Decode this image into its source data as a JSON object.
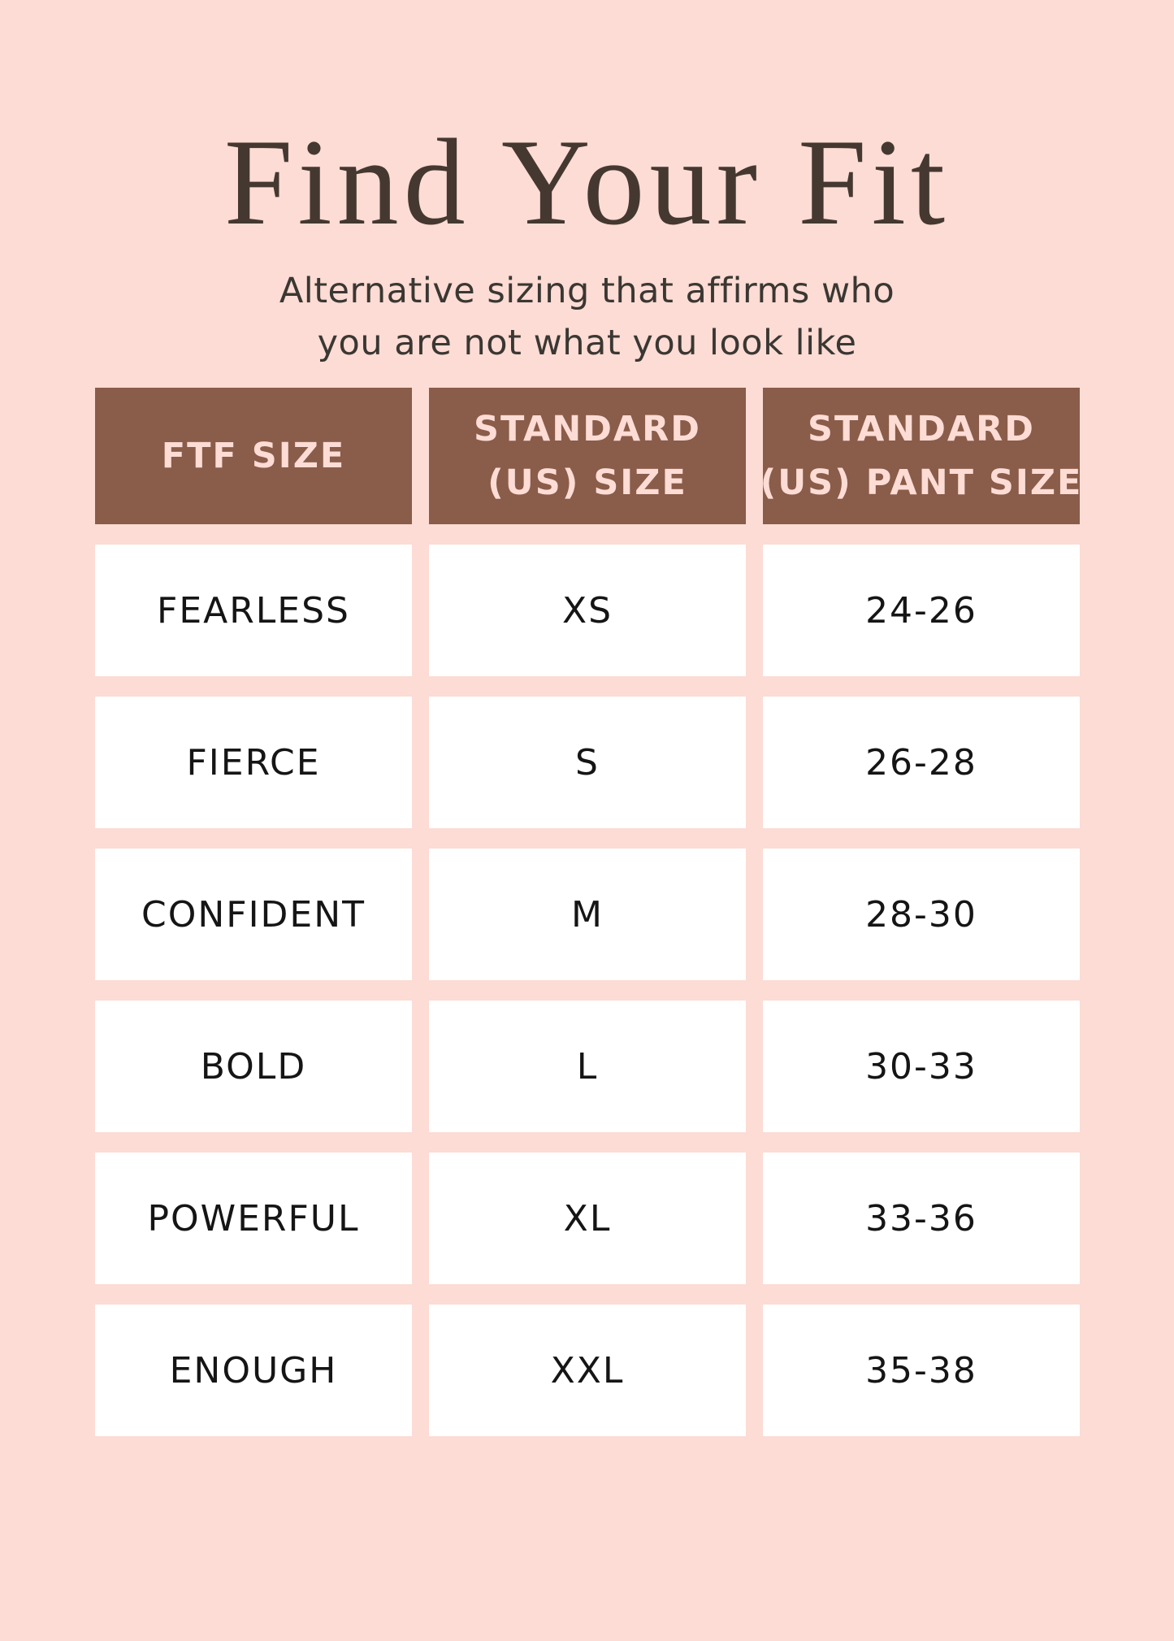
{
  "header": {
    "title": "Find Your Fit",
    "subtitle_lines": [
      "Alternative sizing that affirms who",
      "you are not what you look like"
    ]
  },
  "colors": {
    "bg": "#fcdcd4",
    "header_bg": "#8a5c4a",
    "header_text": "#fcdcd4",
    "title_text": "#453830",
    "subtitle_text": "#3b3733",
    "cell_bg": "#ffffff",
    "cell_text": "#151515"
  },
  "table": {
    "columns": [
      {
        "line1": "FTF SIZE",
        "line2": ""
      },
      {
        "line1": "STANDARD",
        "line2": "(US) SIZE"
      },
      {
        "line1": "STANDARD",
        "line2": "(US) PANT SIZE"
      }
    ],
    "rows": [
      {
        "ftf": "FEARLESS",
        "us": "XS",
        "pant": "24-26"
      },
      {
        "ftf": "FIERCE",
        "us": "S",
        "pant": "26-28"
      },
      {
        "ftf": "CONFIDENT",
        "us": "M",
        "pant": "28-30"
      },
      {
        "ftf": "BOLD",
        "us": "L",
        "pant": "30-33"
      },
      {
        "ftf": "POWERFUL",
        "us": "XL",
        "pant": "33-36"
      },
      {
        "ftf": "ENOUGH",
        "us": "XXL",
        "pant": "35-38"
      }
    ]
  },
  "chart_data": {
    "type": "table",
    "title": "Find Your Fit",
    "subtitle": "Alternative sizing that affirms who you are not what you look like",
    "columns": [
      "FTF SIZE",
      "STANDARD (US) SIZE",
      "STANDARD (US) PANT SIZE"
    ],
    "rows": [
      [
        "FEARLESS",
        "XS",
        "24-26"
      ],
      [
        "FIERCE",
        "S",
        "26-28"
      ],
      [
        "CONFIDENT",
        "M",
        "28-30"
      ],
      [
        "BOLD",
        "L",
        "30-33"
      ],
      [
        "POWERFUL",
        "XL",
        "33-36"
      ],
      [
        "ENOUGH",
        "XXL",
        "35-38"
      ]
    ]
  }
}
